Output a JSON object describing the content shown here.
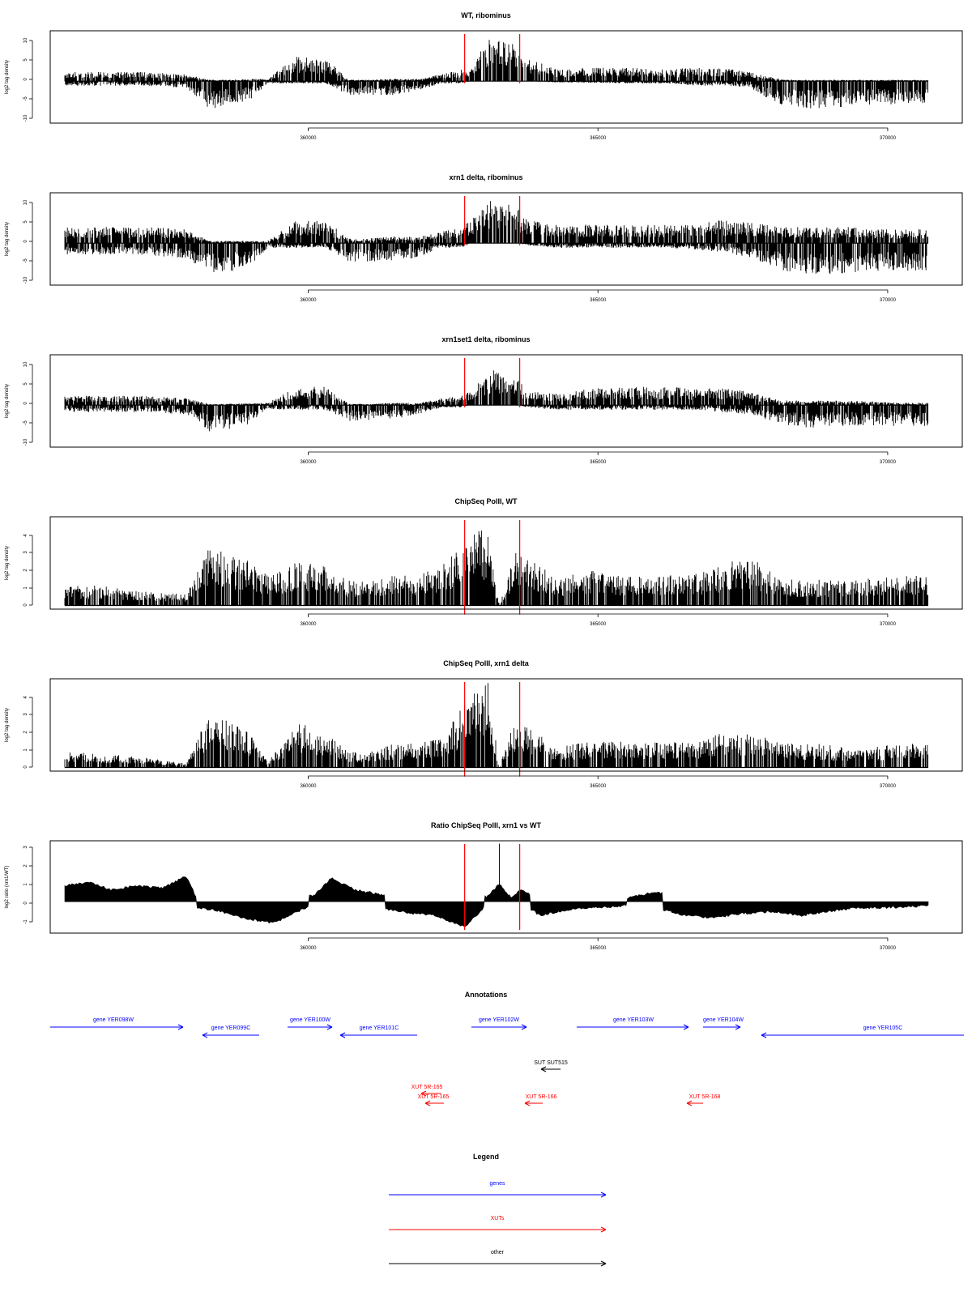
{
  "panels": [
    {
      "id": "wt",
      "title": "WT, ribominus",
      "ylabel": "log2 tag density",
      "yticks": [
        "10",
        "5",
        "0",
        "-5",
        "-10"
      ]
    },
    {
      "id": "xrn1",
      "title": "xrn1 delta, ribominus",
      "ylabel": "log2 tag density",
      "yticks": [
        "10",
        "5",
        "0",
        "-5",
        "-10"
      ]
    },
    {
      "id": "xrn1set1",
      "title": "xrn1set1 delta, ribominus",
      "ylabel": "log2 tag density",
      "yticks": [
        "10",
        "5",
        "0",
        "-5",
        "-10"
      ]
    },
    {
      "id": "chip_wt",
      "title": "ChipSeq PolII, WT",
      "ylabel": "log2 tag density",
      "yticks": [
        "4",
        "3",
        "2",
        "1",
        "0"
      ]
    },
    {
      "id": "chip_xrn1",
      "title": "ChipSeq PolII, xrn1 delta",
      "ylabel": "log2 tag density",
      "yticks": [
        "4",
        "3",
        "2",
        "1",
        "0"
      ]
    },
    {
      "id": "ratio",
      "title": "Ratio ChipSeq PolII, xrn1 vs WT",
      "ylabel": "log2 ratio (xrn1/WT)",
      "yticks": [
        "3",
        "2",
        "1",
        "0",
        "-1"
      ]
    }
  ],
  "xticks": [
    "360000",
    "365000",
    "370000"
  ],
  "annotations": {
    "title": "Annotations",
    "genes": [
      {
        "label": "gene YER098W",
        "color": "#0000ff"
      },
      {
        "label": "gene YER099C",
        "color": "#0000ff"
      },
      {
        "label": "gene YER100W",
        "color": "#0000ff"
      },
      {
        "label": "gene YER101C",
        "color": "#0000ff"
      },
      {
        "label": "gene YER102W",
        "color": "#0000ff"
      },
      {
        "label": "gene YER103W",
        "color": "#0000ff"
      },
      {
        "label": "gene YER104W",
        "color": "#0000ff"
      },
      {
        "label": "gene YER105C",
        "color": "#0000ff"
      }
    ],
    "suts": [
      {
        "label": "SUT SUT515",
        "color": "#000000"
      }
    ],
    "xuts": [
      {
        "label": "XUT 5R-165",
        "color": "#ff0000"
      },
      {
        "label": "XUT 5R-165",
        "color": "#ff0000"
      },
      {
        "label": "XUT 5R-166",
        "color": "#ff0000"
      },
      {
        "label": "XUT 5R-168",
        "color": "#ff0000"
      }
    ]
  },
  "legend": {
    "title": "Legend",
    "items": [
      {
        "label": "genes",
        "color": "#0000ff"
      },
      {
        "label": "XUTs",
        "color": "#ff0000"
      },
      {
        "label": "other",
        "color": "#000000"
      }
    ]
  },
  "chart_data": [
    {
      "type": "bar",
      "title": "WT, ribominus",
      "ylabel": "log2 tag density",
      "xlim": [
        355800,
        370700
      ],
      "ylim": [
        -10,
        12
      ],
      "markers": [
        362700,
        363650
      ],
      "profile": {
        "x": [
          355800,
          356500,
          357200,
          357900,
          358300,
          358700,
          359000,
          359300,
          359800,
          360300,
          360700,
          361000,
          361500,
          361900,
          362300,
          362650,
          362800,
          363100,
          363300,
          363600,
          363800,
          364300,
          364800,
          365400,
          366200,
          366700,
          367100,
          367600,
          368200,
          368800,
          369300,
          369800,
          370300,
          370700
        ],
        "pos": [
          2,
          2,
          2,
          1.5,
          0.3,
          0.3,
          0.5,
          0.5,
          5.5,
          5,
          0.3,
          0.3,
          0.5,
          0.5,
          1.5,
          2.5,
          3,
          9,
          10,
          8,
          5,
          2.5,
          3,
          3,
          2.5,
          3,
          3,
          2,
          0.3,
          0.3,
          0.3,
          0.3,
          0.3,
          0.3
        ],
        "neg": [
          -1,
          -1,
          -1,
          -1.5,
          -6,
          -5,
          -4,
          -0.5,
          -0.5,
          -0.5,
          -3,
          -3,
          -3,
          -2,
          -0.5,
          -0.5,
          0,
          0,
          0,
          0,
          0,
          -0.3,
          -0.3,
          -0.5,
          -0.5,
          -1,
          -1,
          -1.5,
          -5.5,
          -6,
          -5.5,
          -5,
          -5,
          -5
        ]
      }
    },
    {
      "type": "bar",
      "title": "xrn1 delta, ribominus",
      "ylabel": "log2 tag density",
      "xlim": [
        355800,
        370700
      ],
      "ylim": [
        -10,
        12
      ],
      "markers": [
        362700,
        363650
      ],
      "profile": {
        "x": [
          355800,
          356500,
          357200,
          357900,
          358300,
          358700,
          359000,
          359300,
          359800,
          360300,
          360700,
          361000,
          361500,
          361900,
          362300,
          362650,
          362800,
          363100,
          363300,
          363600,
          363800,
          364300,
          364800,
          365400,
          366200,
          366700,
          367100,
          367600,
          368200,
          368800,
          369300,
          369800,
          370300,
          370700
        ],
        "pos": [
          3.5,
          3.5,
          3.5,
          3,
          0.5,
          0.5,
          0.5,
          0.5,
          5,
          5,
          1,
          1,
          1.5,
          1.5,
          2.5,
          3.5,
          5,
          9,
          10,
          8,
          5,
          4,
          4,
          4,
          4,
          4,
          5,
          4.5,
          3.5,
          3.5,
          3.5,
          3,
          3,
          3
        ],
        "neg": [
          -2.5,
          -2.5,
          -2.5,
          -3.5,
          -6.5,
          -6,
          -5,
          -1,
          -1,
          -1,
          -4,
          -4,
          -4,
          -3,
          -1,
          -1,
          0,
          0,
          0,
          0,
          -0.5,
          -1,
          -1,
          -1,
          -1,
          -1.5,
          -2,
          -3,
          -6,
          -7,
          -6.5,
          -6,
          -6,
          -6
        ]
      }
    },
    {
      "type": "bar",
      "title": "xrn1set1 delta, ribominus",
      "ylabel": "log2 tag density",
      "xlim": [
        355800,
        370700
      ],
      "ylim": [
        -10,
        12
      ],
      "markers": [
        362700,
        363650
      ],
      "profile": {
        "x": [
          355800,
          356500,
          357200,
          357900,
          358300,
          358700,
          359000,
          359300,
          359800,
          360300,
          360700,
          361000,
          361500,
          361900,
          362300,
          362650,
          362800,
          363100,
          363300,
          363600,
          363800,
          364300,
          364800,
          365400,
          366200,
          366700,
          367100,
          367600,
          368200,
          368800,
          369300,
          369800,
          370300,
          370700
        ],
        "pos": [
          2,
          2,
          2,
          1.5,
          0.3,
          0.3,
          0.5,
          0.5,
          4,
          4,
          0.3,
          0.3,
          0.5,
          0.5,
          1.5,
          2,
          3,
          7,
          8,
          6,
          3,
          2.5,
          3.5,
          4,
          4,
          3.5,
          4,
          3,
          1,
          1,
          1,
          0.8,
          0.5,
          0.5
        ],
        "neg": [
          -1.5,
          -1.5,
          -1.5,
          -2,
          -6,
          -5,
          -4,
          -1,
          -1,
          -1,
          -3.5,
          -3.5,
          -3,
          -2,
          -0.5,
          -0.5,
          0,
          0,
          0,
          0,
          -0.5,
          -1,
          -1,
          -1,
          -1,
          -1,
          -1.5,
          -2,
          -4.5,
          -5,
          -4.5,
          -4.5,
          -4.5,
          -4.5
        ]
      }
    },
    {
      "type": "bar",
      "title": "ChipSeq PolII, WT",
      "ylabel": "log2 tag density",
      "xlim": [
        355800,
        370700
      ],
      "ylim": [
        -0.2,
        4.9
      ],
      "markers": [
        362700,
        363650
      ],
      "profile": {
        "x": [
          355800,
          356500,
          357200,
          357900,
          358300,
          358700,
          359000,
          359300,
          359800,
          360300,
          360700,
          361000,
          361500,
          361900,
          362300,
          362650,
          362800,
          363100,
          363300,
          363600,
          363800,
          364300,
          364800,
          365400,
          366200,
          366700,
          367100,
          367600,
          368200,
          368800,
          369300,
          369800,
          370300,
          370700
        ],
        "pos": [
          1,
          1,
          0.7,
          0.6,
          3,
          2.5,
          2.2,
          1.5,
          2.2,
          2,
          1.3,
          1.2,
          1.5,
          1.6,
          2,
          3,
          3.5,
          4,
          0,
          3,
          2.5,
          1.3,
          1.8,
          1.5,
          1.5,
          1.6,
          2,
          2.5,
          1.3,
          1.3,
          1.2,
          1.4,
          1.5,
          1.5
        ],
        "neg": [
          0,
          0,
          0,
          0,
          0,
          0,
          0,
          0,
          0,
          0,
          0,
          0,
          0,
          0,
          0,
          0,
          0,
          0,
          0,
          0,
          0,
          0,
          0,
          0,
          0,
          0,
          0,
          0,
          0,
          0,
          0,
          0,
          0,
          0
        ]
      }
    },
    {
      "type": "bar",
      "title": "ChipSeq PolII, xrn1 delta",
      "ylabel": "log2 tag density",
      "xlim": [
        355800,
        370700
      ],
      "ylim": [
        -0.2,
        4.9
      ],
      "markers": [
        362700,
        363650
      ],
      "profile": {
        "x": [
          355800,
          356500,
          357200,
          357900,
          358300,
          358700,
          359000,
          359300,
          359800,
          360300,
          360700,
          361000,
          361500,
          361900,
          362300,
          362650,
          362800,
          363100,
          363300,
          363600,
          363800,
          364300,
          364800,
          365400,
          366200,
          366700,
          367100,
          367600,
          368200,
          368800,
          369300,
          369800,
          370300,
          370700
        ],
        "pos": [
          0.8,
          0.7,
          0.5,
          0.2,
          2.8,
          2.2,
          1.8,
          0.3,
          2.3,
          1.8,
          0.8,
          0.8,
          1.2,
          1.2,
          1.5,
          3,
          3.6,
          4.3,
          0,
          2.8,
          2,
          1,
          1.3,
          1.3,
          1.3,
          1.3,
          1.7,
          1.8,
          1.2,
          1.2,
          1,
          1.1,
          1.2,
          1.2
        ],
        "neg": [
          0,
          0,
          0,
          0,
          0,
          0,
          0,
          0,
          0,
          0,
          0,
          0,
          0,
          0,
          0,
          0,
          0,
          0,
          0,
          0,
          0,
          0,
          0,
          0,
          0,
          0,
          0,
          0,
          0,
          0,
          0,
          0,
          0,
          0
        ]
      }
    },
    {
      "type": "area",
      "title": "Ratio ChipSeq PolII, xrn1 vs WT",
      "ylabel": "log2 ratio (xrn1/WT)",
      "xlim": [
        355800,
        370700
      ],
      "ylim": [
        -1.6,
        3.1
      ],
      "markers": [
        362700,
        363650
      ],
      "profile": {
        "x": [
          355800,
          356200,
          356600,
          357000,
          357500,
          357900,
          358100,
          358500,
          359000,
          359400,
          359800,
          360100,
          360400,
          360800,
          361200,
          361800,
          362200,
          362700,
          362900,
          363100,
          363300,
          363500,
          363650,
          364000,
          364500,
          365000,
          365500,
          366000,
          366500,
          367000,
          367500,
          368000,
          368500,
          369000,
          369500,
          370000,
          370700
        ],
        "pos": [
          0.8,
          1,
          0.6,
          0.8,
          0.7,
          1.3,
          0,
          0,
          0,
          0,
          0.3,
          0.3,
          1.2,
          0.6,
          0.4,
          0.2,
          0.1,
          0,
          0.1,
          0.3,
          0.9,
          0.2,
          0.6,
          0.2,
          0.2,
          0.1,
          0.2,
          0.5,
          0.1,
          0.1,
          0.1,
          0.2,
          0.1,
          0.3,
          0.2,
          0.1,
          0.1
        ],
        "neg": [
          0,
          0,
          -0.3,
          0,
          0,
          0,
          -0.3,
          -0.5,
          -0.9,
          -1.1,
          -0.5,
          -0.2,
          -0.2,
          -0.5,
          -0.3,
          -0.6,
          -0.7,
          -1.3,
          -0.7,
          -0.1,
          0,
          0,
          0,
          -0.7,
          -0.4,
          -0.3,
          -0.2,
          -0.3,
          -0.7,
          -0.8,
          -0.6,
          -0.5,
          -0.7,
          -0.5,
          -0.3,
          -0.3,
          -0.2
        ]
      }
    }
  ]
}
